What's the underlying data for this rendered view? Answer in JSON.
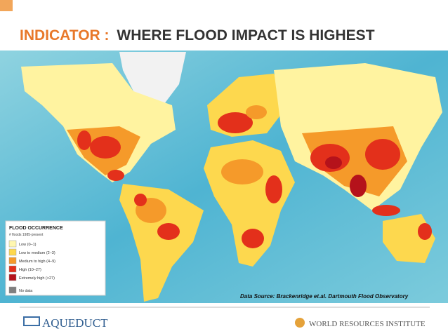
{
  "header": {
    "title_prefix": "INDICATOR :",
    "title": "WHERE FLOOD IMPACT IS HIGHEST"
  },
  "legend": {
    "title": "FLOOD OCCURRENCE",
    "subtitle": "# floods 1985-present",
    "items": [
      {
        "label": "Low (0–1)",
        "color": "#fff7b0"
      },
      {
        "label": "Low to medium (2–3)",
        "color": "#fdd84e"
      },
      {
        "label": "Medium to high (4–9)",
        "color": "#f59a2a"
      },
      {
        "label": "High (10–27)",
        "color": "#e3301b"
      },
      {
        "label": "Extremely high (>27)",
        "color": "#b5121b"
      },
      {
        "label": "No data",
        "color": "#7f7f7f"
      }
    ]
  },
  "source": "Data Source: Brackenridge et.al. Dartmouth Flood Observatory",
  "footer": {
    "left": "AQUEDUCT",
    "right": "WORLD RESOURCES INSTITUTE"
  }
}
